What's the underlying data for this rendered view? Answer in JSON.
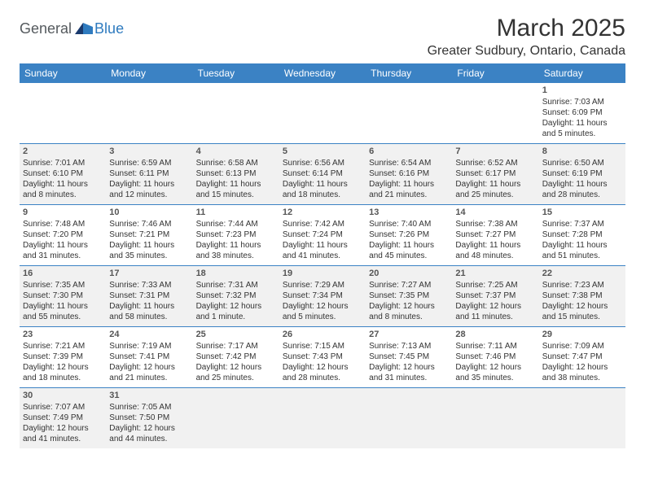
{
  "logo": {
    "general": "General",
    "blue": "Blue"
  },
  "title": "March 2025",
  "location": "Greater Sudbury, Ontario, Canada",
  "colors": {
    "header_bg": "#3b82c4",
    "header_text": "#ffffff",
    "row_border": "#3b82c4",
    "shaded_bg": "#f1f1f1",
    "plain_bg": "#ffffff",
    "text": "#333333",
    "logo_gray": "#555a5e",
    "logo_blue": "#2f7bbf"
  },
  "weekdays": [
    "Sunday",
    "Monday",
    "Tuesday",
    "Wednesday",
    "Thursday",
    "Friday",
    "Saturday"
  ],
  "weeks": [
    {
      "shaded": false,
      "days": [
        null,
        null,
        null,
        null,
        null,
        null,
        {
          "n": "1",
          "sunrise": "7:03 AM",
          "sunset": "6:09 PM",
          "daylight": "11 hours and 5 minutes."
        }
      ]
    },
    {
      "shaded": true,
      "days": [
        {
          "n": "2",
          "sunrise": "7:01 AM",
          "sunset": "6:10 PM",
          "daylight": "11 hours and 8 minutes."
        },
        {
          "n": "3",
          "sunrise": "6:59 AM",
          "sunset": "6:11 PM",
          "daylight": "11 hours and 12 minutes."
        },
        {
          "n": "4",
          "sunrise": "6:58 AM",
          "sunset": "6:13 PM",
          "daylight": "11 hours and 15 minutes."
        },
        {
          "n": "5",
          "sunrise": "6:56 AM",
          "sunset": "6:14 PM",
          "daylight": "11 hours and 18 minutes."
        },
        {
          "n": "6",
          "sunrise": "6:54 AM",
          "sunset": "6:16 PM",
          "daylight": "11 hours and 21 minutes."
        },
        {
          "n": "7",
          "sunrise": "6:52 AM",
          "sunset": "6:17 PM",
          "daylight": "11 hours and 25 minutes."
        },
        {
          "n": "8",
          "sunrise": "6:50 AM",
          "sunset": "6:19 PM",
          "daylight": "11 hours and 28 minutes."
        }
      ]
    },
    {
      "shaded": false,
      "days": [
        {
          "n": "9",
          "sunrise": "7:48 AM",
          "sunset": "7:20 PM",
          "daylight": "11 hours and 31 minutes."
        },
        {
          "n": "10",
          "sunrise": "7:46 AM",
          "sunset": "7:21 PM",
          "daylight": "11 hours and 35 minutes."
        },
        {
          "n": "11",
          "sunrise": "7:44 AM",
          "sunset": "7:23 PM",
          "daylight": "11 hours and 38 minutes."
        },
        {
          "n": "12",
          "sunrise": "7:42 AM",
          "sunset": "7:24 PM",
          "daylight": "11 hours and 41 minutes."
        },
        {
          "n": "13",
          "sunrise": "7:40 AM",
          "sunset": "7:26 PM",
          "daylight": "11 hours and 45 minutes."
        },
        {
          "n": "14",
          "sunrise": "7:38 AM",
          "sunset": "7:27 PM",
          "daylight": "11 hours and 48 minutes."
        },
        {
          "n": "15",
          "sunrise": "7:37 AM",
          "sunset": "7:28 PM",
          "daylight": "11 hours and 51 minutes."
        }
      ]
    },
    {
      "shaded": true,
      "days": [
        {
          "n": "16",
          "sunrise": "7:35 AM",
          "sunset": "7:30 PM",
          "daylight": "11 hours and 55 minutes."
        },
        {
          "n": "17",
          "sunrise": "7:33 AM",
          "sunset": "7:31 PM",
          "daylight": "11 hours and 58 minutes."
        },
        {
          "n": "18",
          "sunrise": "7:31 AM",
          "sunset": "7:32 PM",
          "daylight": "12 hours and 1 minute."
        },
        {
          "n": "19",
          "sunrise": "7:29 AM",
          "sunset": "7:34 PM",
          "daylight": "12 hours and 5 minutes."
        },
        {
          "n": "20",
          "sunrise": "7:27 AM",
          "sunset": "7:35 PM",
          "daylight": "12 hours and 8 minutes."
        },
        {
          "n": "21",
          "sunrise": "7:25 AM",
          "sunset": "7:37 PM",
          "daylight": "12 hours and 11 minutes."
        },
        {
          "n": "22",
          "sunrise": "7:23 AM",
          "sunset": "7:38 PM",
          "daylight": "12 hours and 15 minutes."
        }
      ]
    },
    {
      "shaded": false,
      "days": [
        {
          "n": "23",
          "sunrise": "7:21 AM",
          "sunset": "7:39 PM",
          "daylight": "12 hours and 18 minutes."
        },
        {
          "n": "24",
          "sunrise": "7:19 AM",
          "sunset": "7:41 PM",
          "daylight": "12 hours and 21 minutes."
        },
        {
          "n": "25",
          "sunrise": "7:17 AM",
          "sunset": "7:42 PM",
          "daylight": "12 hours and 25 minutes."
        },
        {
          "n": "26",
          "sunrise": "7:15 AM",
          "sunset": "7:43 PM",
          "daylight": "12 hours and 28 minutes."
        },
        {
          "n": "27",
          "sunrise": "7:13 AM",
          "sunset": "7:45 PM",
          "daylight": "12 hours and 31 minutes."
        },
        {
          "n": "28",
          "sunrise": "7:11 AM",
          "sunset": "7:46 PM",
          "daylight": "12 hours and 35 minutes."
        },
        {
          "n": "29",
          "sunrise": "7:09 AM",
          "sunset": "7:47 PM",
          "daylight": "12 hours and 38 minutes."
        }
      ]
    },
    {
      "shaded": true,
      "days": [
        {
          "n": "30",
          "sunrise": "7:07 AM",
          "sunset": "7:49 PM",
          "daylight": "12 hours and 41 minutes."
        },
        {
          "n": "31",
          "sunrise": "7:05 AM",
          "sunset": "7:50 PM",
          "daylight": "12 hours and 44 minutes."
        },
        null,
        null,
        null,
        null,
        null
      ]
    }
  ],
  "labels": {
    "sunrise": "Sunrise: ",
    "sunset": "Sunset: ",
    "daylight": "Daylight: "
  }
}
